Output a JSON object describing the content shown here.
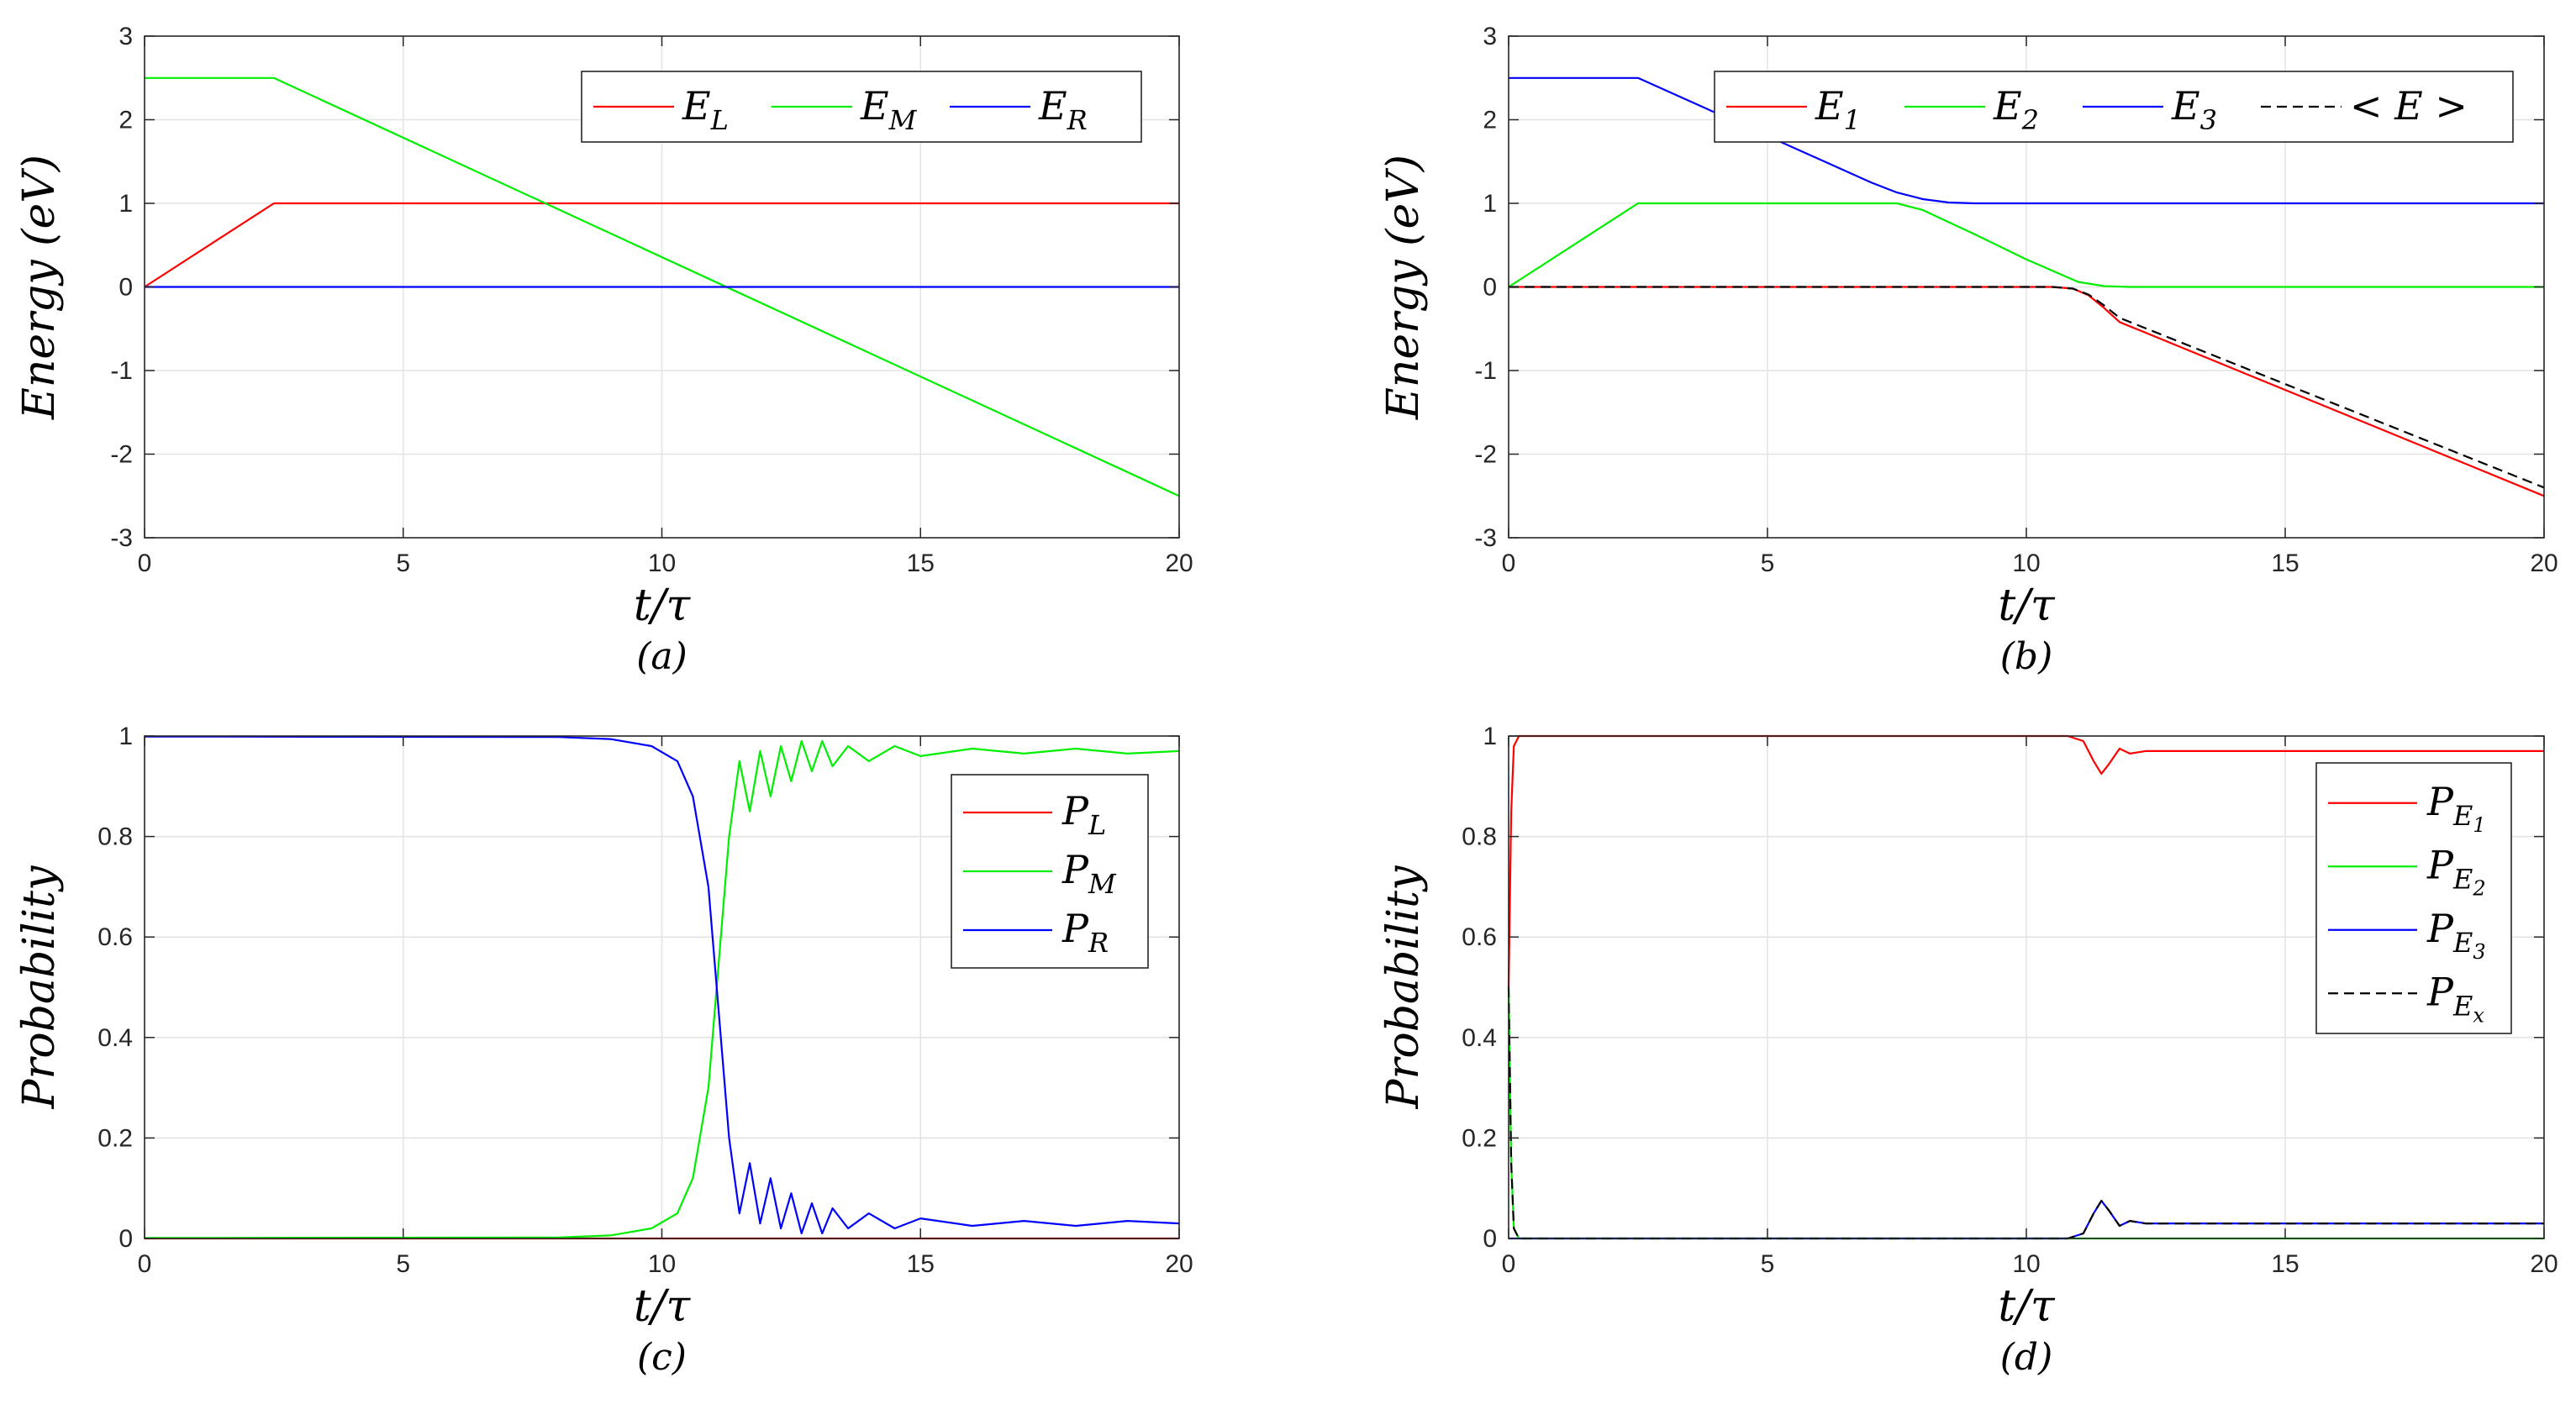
{
  "figure": {
    "panel_labels": [
      "(a)",
      "(b)",
      "(c)",
      "(d)"
    ]
  },
  "chart_data": [
    {
      "type": "line",
      "panel": "(a)",
      "xlabel": "t/τ",
      "ylabel": "Energy (eV)",
      "xlim": [
        0,
        20
      ],
      "ylim": [
        -3,
        3
      ],
      "xticks": [
        0,
        5,
        10,
        15,
        20
      ],
      "yticks": [
        -3,
        -2,
        -1,
        0,
        1,
        2,
        3
      ],
      "xtick_labels": [
        "0",
        "5",
        "10",
        "15",
        "20"
      ],
      "ytick_labels": [
        "-3",
        "-2",
        "-1",
        "0",
        "1",
        "2",
        "3"
      ],
      "grid": true,
      "legend_position": "top-right",
      "legend_layout": "horizontal",
      "series": [
        {
          "name": "E_L",
          "label": "E",
          "sub": "L",
          "color": "#ff0000",
          "dash": "solid",
          "x": [
            0,
            2.5,
            20
          ],
          "y": [
            0,
            1,
            1
          ]
        },
        {
          "name": "E_M",
          "label": "E",
          "sub": "M",
          "color": "#00ee00",
          "dash": "solid",
          "x": [
            0,
            2.5,
            20
          ],
          "y": [
            2.5,
            2.5,
            -2.5
          ]
        },
        {
          "name": "E_R",
          "label": "E",
          "sub": "R",
          "color": "#0000ff",
          "dash": "solid",
          "x": [
            0,
            20
          ],
          "y": [
            0,
            0
          ]
        }
      ]
    },
    {
      "type": "line",
      "panel": "(b)",
      "xlabel": "t/τ",
      "ylabel": "Energy (eV)",
      "xlim": [
        0,
        20
      ],
      "ylim": [
        -3,
        3
      ],
      "xticks": [
        0,
        5,
        10,
        15,
        20
      ],
      "yticks": [
        -3,
        -2,
        -1,
        0,
        1,
        2,
        3
      ],
      "xtick_labels": [
        "0",
        "5",
        "10",
        "15",
        "20"
      ],
      "ytick_labels": [
        "-3",
        "-2",
        "-1",
        "0",
        "1",
        "2",
        "3"
      ],
      "grid": true,
      "legend_position": "top-right",
      "legend_layout": "horizontal",
      "series": [
        {
          "name": "E_1",
          "label": "E",
          "sub": "1",
          "color": "#ff0000",
          "dash": "solid",
          "x": [
            0,
            10.5,
            10.9,
            11.2,
            11.5,
            11.8,
            20
          ],
          "y": [
            0,
            0,
            -0.02,
            -0.1,
            -0.25,
            -0.42,
            -2.5
          ]
        },
        {
          "name": "E_2",
          "label": "E",
          "sub": "2",
          "color": "#00ee00",
          "dash": "solid",
          "x": [
            0,
            2.5,
            7.5,
            8.0,
            9.0,
            10.0,
            11.0,
            11.5,
            12.0,
            20
          ],
          "y": [
            0,
            1,
            1,
            0.92,
            0.63,
            0.33,
            0.06,
            0.01,
            0,
            0
          ]
        },
        {
          "name": "E_3",
          "label": "E",
          "sub": "3",
          "color": "#0000ff",
          "dash": "solid",
          "x": [
            0,
            2.5,
            7.0,
            7.5,
            8.0,
            8.5,
            9.0,
            20
          ],
          "y": [
            2.5,
            2.5,
            1.25,
            1.13,
            1.05,
            1.01,
            1.0,
            1.0
          ]
        },
        {
          "name": "<E>",
          "label": "< E >",
          "sub": "",
          "color": "#000000",
          "dash": "dashed",
          "x": [
            0,
            10.5,
            10.9,
            11.2,
            11.5,
            11.8,
            20
          ],
          "y": [
            0,
            0,
            -0.02,
            -0.09,
            -0.22,
            -0.37,
            -2.4
          ]
        }
      ]
    },
    {
      "type": "line",
      "panel": "(c)",
      "xlabel": "t/τ",
      "ylabel": "Probability",
      "xlim": [
        0,
        20
      ],
      "ylim": [
        0,
        1
      ],
      "xticks": [
        0,
        5,
        10,
        15,
        20
      ],
      "yticks": [
        0,
        0.2,
        0.4,
        0.6,
        0.8,
        1
      ],
      "xtick_labels": [
        "0",
        "5",
        "10",
        "15",
        "20"
      ],
      "ytick_labels": [
        "0",
        "0.2",
        "0.4",
        "0.6",
        "0.8",
        "1"
      ],
      "grid": true,
      "legend_position": "top-right",
      "legend_layout": "vertical",
      "series": [
        {
          "name": "P_L",
          "label": "P",
          "sub": "L",
          "color": "#ff0000",
          "dash": "solid",
          "x": [
            0,
            20
          ],
          "y": [
            0,
            0
          ]
        },
        {
          "name": "P_M",
          "label": "P",
          "sub": "M",
          "color": "#00ee00",
          "dash": "solid",
          "x": [
            0,
            8,
            9,
            9.8,
            10.3,
            10.6,
            10.9,
            11.1,
            11.3,
            11.5,
            11.7,
            11.9,
            12.1,
            12.3,
            12.5,
            12.7,
            12.9,
            13.1,
            13.3,
            13.6,
            14.0,
            14.5,
            15.0,
            16.0,
            17.0,
            18.0,
            19.0,
            20.0
          ],
          "y": [
            0.001,
            0.002,
            0.006,
            0.02,
            0.05,
            0.12,
            0.3,
            0.55,
            0.8,
            0.95,
            0.85,
            0.97,
            0.88,
            0.98,
            0.91,
            0.99,
            0.93,
            0.99,
            0.94,
            0.98,
            0.95,
            0.98,
            0.96,
            0.975,
            0.965,
            0.975,
            0.965,
            0.97
          ]
        },
        {
          "name": "P_R",
          "label": "P",
          "sub": "R",
          "color": "#0000ff",
          "dash": "solid",
          "x": [
            0,
            8,
            9,
            9.8,
            10.3,
            10.6,
            10.9,
            11.1,
            11.3,
            11.5,
            11.7,
            11.9,
            12.1,
            12.3,
            12.5,
            12.7,
            12.9,
            13.1,
            13.3,
            13.6,
            14.0,
            14.5,
            15.0,
            16.0,
            17.0,
            18.0,
            19.0,
            20.0
          ],
          "y": [
            0.999,
            0.998,
            0.994,
            0.98,
            0.95,
            0.88,
            0.7,
            0.45,
            0.2,
            0.05,
            0.15,
            0.03,
            0.12,
            0.02,
            0.09,
            0.01,
            0.07,
            0.01,
            0.06,
            0.02,
            0.05,
            0.02,
            0.04,
            0.025,
            0.035,
            0.025,
            0.035,
            0.03
          ]
        }
      ]
    },
    {
      "type": "line",
      "panel": "(d)",
      "xlabel": "t/τ",
      "ylabel": "Probability",
      "xlim": [
        0,
        20
      ],
      "ylim": [
        0,
        1
      ],
      "xticks": [
        0,
        5,
        10,
        15,
        20
      ],
      "yticks": [
        0,
        0.2,
        0.4,
        0.6,
        0.8,
        1
      ],
      "xtick_labels": [
        "0",
        "5",
        "10",
        "15",
        "20"
      ],
      "ytick_labels": [
        "0",
        "0.2",
        "0.4",
        "0.6",
        "0.8",
        "1"
      ],
      "grid": true,
      "legend_position": "top-right",
      "legend_layout": "vertical",
      "series": [
        {
          "name": "P_E1",
          "label": "P",
          "sub": "E",
          "subsub": "1",
          "color": "#ff0000",
          "dash": "solid",
          "x": [
            0,
            0.05,
            0.1,
            0.2,
            10.8,
            11.1,
            11.3,
            11.45,
            11.6,
            11.8,
            12.0,
            12.3,
            20
          ],
          "y": [
            0.5,
            0.85,
            0.98,
            1.0,
            1.0,
            0.99,
            0.95,
            0.925,
            0.945,
            0.975,
            0.965,
            0.97,
            0.97
          ]
        },
        {
          "name": "P_E2",
          "label": "P",
          "sub": "E",
          "subsub": "2",
          "color": "#00ee00",
          "dash": "solid",
          "x": [
            0,
            0.05,
            0.1,
            0.2,
            20
          ],
          "y": [
            0.5,
            0.15,
            0.02,
            0,
            0
          ]
        },
        {
          "name": "P_E3",
          "label": "P",
          "sub": "E",
          "subsub": "3",
          "color": "#0000ff",
          "dash": "solid",
          "x": [
            0,
            10.8,
            11.1,
            11.3,
            11.45,
            11.6,
            11.8,
            12.0,
            12.3,
            20
          ],
          "y": [
            0,
            0,
            0.01,
            0.05,
            0.075,
            0.055,
            0.025,
            0.035,
            0.03,
            0.03
          ]
        },
        {
          "name": "P_Ex",
          "label": "P",
          "sub": "E",
          "subsub": "x",
          "color": "#000000",
          "dash": "dashed",
          "x": [
            0,
            0.05,
            0.1,
            0.2,
            10.8,
            11.1,
            11.3,
            11.45,
            11.6,
            11.8,
            12.0,
            12.3,
            20
          ],
          "y": [
            0.5,
            0.15,
            0.02,
            0,
            0,
            0.01,
            0.05,
            0.075,
            0.055,
            0.025,
            0.035,
            0.03,
            0.03
          ]
        }
      ]
    }
  ]
}
